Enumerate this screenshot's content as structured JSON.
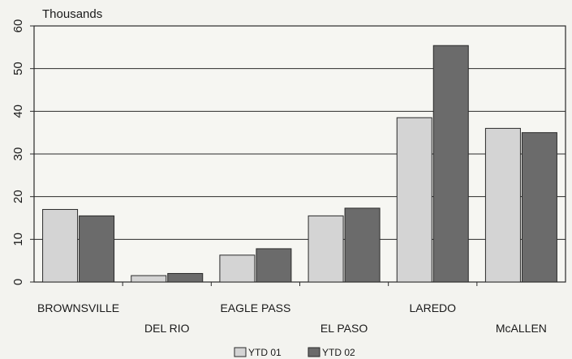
{
  "chart_data": {
    "type": "bar",
    "unit_label": "Thousands",
    "categories": [
      "BROWNSVILLE",
      "DEL RIO",
      "EAGLE PASS",
      "EL PASO",
      "LAREDO",
      "McALLEN"
    ],
    "series": [
      {
        "name": "YTD 01",
        "color": "#d4d4d4",
        "values": [
          17,
          1.5,
          6.3,
          15.5,
          38.5,
          36
        ]
      },
      {
        "name": "YTD 02",
        "color": "#6b6b6b",
        "values": [
          15.5,
          2,
          7.8,
          17.3,
          55.4,
          35
        ]
      }
    ],
    "ylim": [
      0,
      60
    ],
    "yticks": [
      0,
      10,
      20,
      30,
      40,
      50,
      60
    ],
    "grid": true,
    "legend_position": "bottom-center"
  }
}
